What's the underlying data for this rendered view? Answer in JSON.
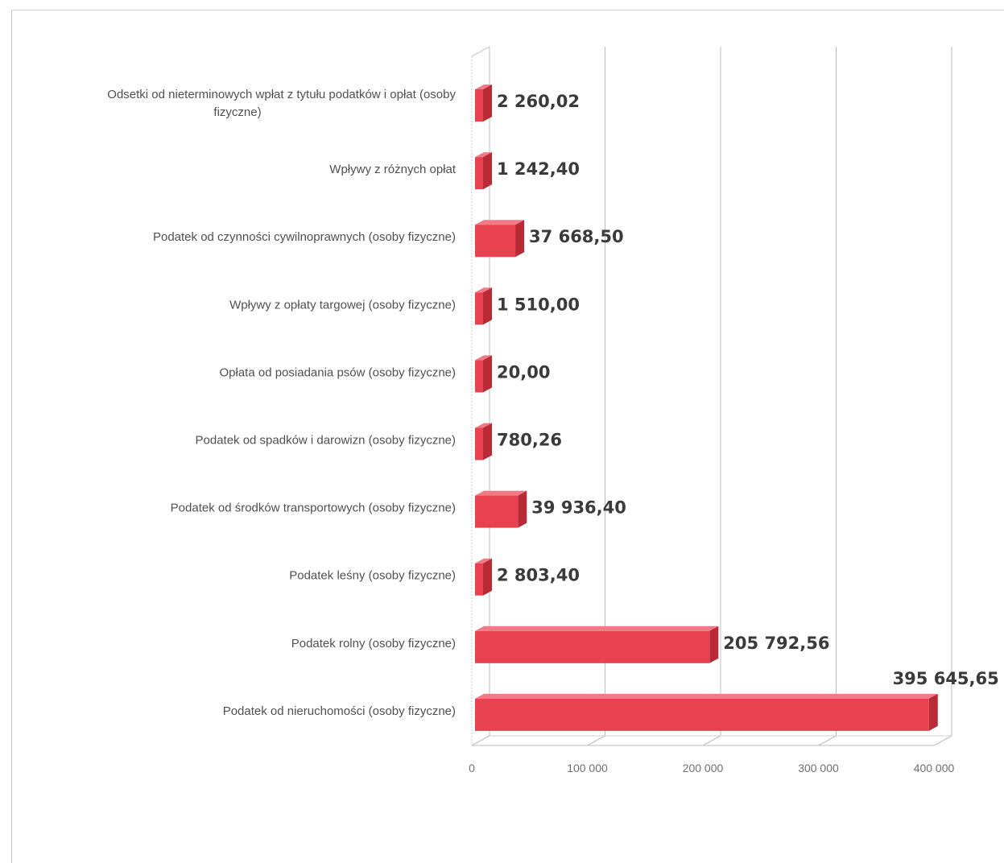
{
  "chart_data": {
    "type": "bar",
    "orientation": "horizontal",
    "three_d": true,
    "title": "",
    "xlabel": "",
    "ylabel": "",
    "xlim": [
      0,
      400000
    ],
    "x_ticks": [
      0,
      100000,
      200000,
      300000,
      400000
    ],
    "x_tick_labels": [
      "0",
      "100 000",
      "200 000",
      "300 000",
      "400 000"
    ],
    "grid": true,
    "legend": "none",
    "bar_color": "#e8414f",
    "categories": [
      "Odsetki od nieterminowych wpłat z tytułu podatków i opłat (osoby fizyczne)",
      "Wpływy z różnych opłat",
      "Podatek od czynności cywilnoprawnych (osoby fizyczne)",
      "Wpływy z opłaty targowej (osoby fizyczne)",
      "Opłata od posiadania psów (osoby fizyczne)",
      "Podatek od spadków i darowizn (osoby fizyczne)",
      "Podatek od środków transportowych (osoby fizyczne)",
      "Podatek leśny (osoby fizyczne)",
      "Podatek rolny (osoby fizyczne)",
      "Podatek od nieruchomości (osoby fizyczne)"
    ],
    "category_lines": [
      [
        "Odsetki od nieterminowych wpłat z tytułu podatków i opłat (osoby",
        "fizyczne)"
      ],
      [
        "Wpływy z różnych opłat"
      ],
      [
        "Podatek od czynności cywilnoprawnych (osoby fizyczne)"
      ],
      [
        "Wpływy z opłaty targowej (osoby fizyczne)"
      ],
      [
        "Opłata od posiadania psów (osoby fizyczne)"
      ],
      [
        "Podatek od spadków i darowizn (osoby fizyczne)"
      ],
      [
        "Podatek od środków transportowych (osoby fizyczne)"
      ],
      [
        "Podatek leśny (osoby fizyczne)"
      ],
      [
        "Podatek rolny (osoby fizyczne)"
      ],
      [
        "Podatek od nieruchomości (osoby fizyczne)"
      ]
    ],
    "values": [
      2260.02,
      1242.4,
      37668.5,
      1510.0,
      20.0,
      780.26,
      39936.4,
      2803.4,
      205792.56,
      395645.65
    ],
    "data_labels": [
      "2 260,02",
      "1 242,40",
      "37 668,50",
      "1 510,00",
      "20,00",
      "780,26",
      "39 936,40",
      "2 803,40",
      "205 792,56",
      "395 645,65"
    ]
  }
}
